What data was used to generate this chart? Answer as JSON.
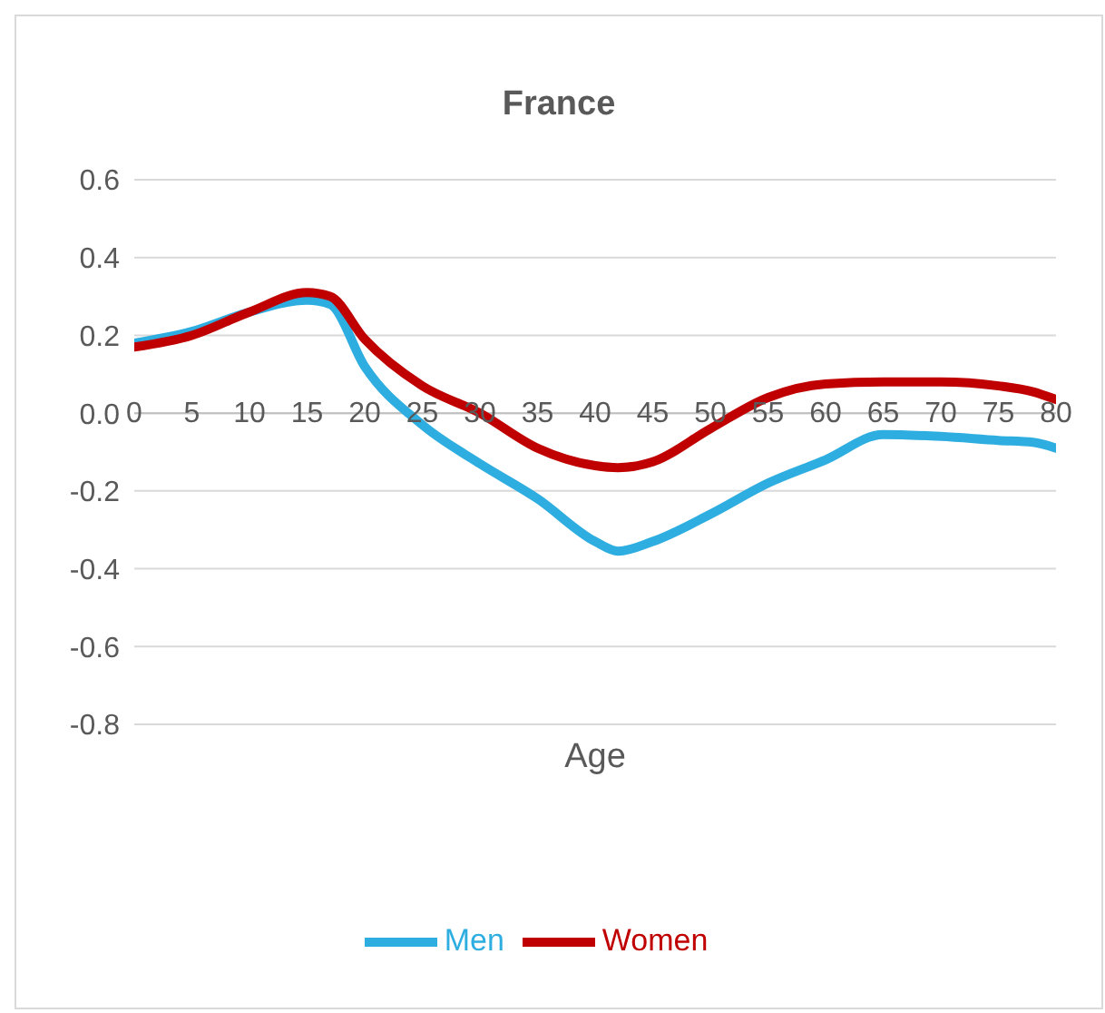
{
  "chart_data": {
    "type": "line",
    "title": "France",
    "xlabel": "Age",
    "x": [
      0,
      5,
      10,
      15,
      17,
      20,
      25,
      30,
      35,
      40,
      42,
      45,
      50,
      55,
      60,
      65,
      70,
      75,
      78,
      80
    ],
    "series": [
      {
        "name": "Men",
        "color": "#2eaee0",
        "values": [
          0.18,
          0.21,
          0.26,
          0.29,
          0.28,
          0.12,
          -0.03,
          -0.13,
          -0.22,
          -0.33,
          -0.355,
          -0.33,
          -0.26,
          -0.18,
          -0.12,
          -0.055,
          -0.06,
          -0.07,
          -0.075,
          -0.09
        ]
      },
      {
        "name": "Women",
        "color": "#c00000",
        "values": [
          0.17,
          0.2,
          0.26,
          0.31,
          0.3,
          0.19,
          0.07,
          0.0,
          -0.09,
          -0.135,
          -0.14,
          -0.125,
          -0.04,
          0.04,
          0.075,
          0.08,
          0.08,
          0.07,
          0.055,
          0.035
        ]
      }
    ],
    "xlim": [
      0,
      80
    ],
    "xticks": [
      0,
      5,
      10,
      15,
      20,
      25,
      30,
      35,
      40,
      45,
      50,
      55,
      60,
      65,
      70,
      75,
      80
    ],
    "ylim": [
      -0.8,
      0.6
    ],
    "yticks": [
      {
        "value": -0.8,
        "label": "-0.8"
      },
      {
        "value": -0.6,
        "label": "-0.6"
      },
      {
        "value": -0.4,
        "label": "-0.4"
      },
      {
        "value": -0.2,
        "label": "-0.2"
      },
      {
        "value": 0,
        "label": "0.0"
      },
      {
        "value": 0.2,
        "label": "0.2"
      },
      {
        "value": 0.4,
        "label": "0.4"
      },
      {
        "value": 0.6,
        "label": "0.6"
      }
    ],
    "grid": "y",
    "legend": "bottom",
    "marker": "none",
    "line_style": "solid"
  }
}
